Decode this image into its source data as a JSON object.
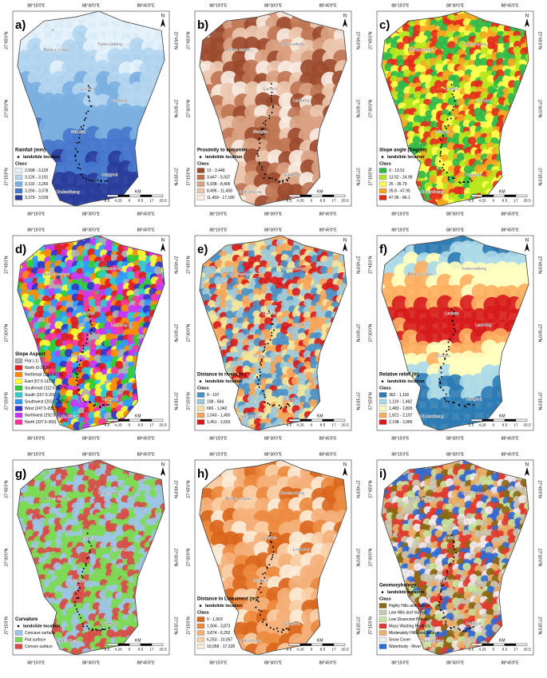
{
  "common": {
    "x_labels": [
      "88°15'0\"E",
      "88°30'0\"E",
      "88°45'0\"E"
    ],
    "y_labels": [
      "27°45'0\"N",
      "27°30'0\"N",
      "27°15'0\"N"
    ],
    "north": "N",
    "places": [
      "Dolma sampa",
      "Yumesodong",
      "Lachen",
      "Lachung",
      "Mangan",
      "Gangtok",
      "Chulanthang"
    ],
    "scale": {
      "unit": "KM",
      "labels": [
        "8.5",
        "4.25",
        "0",
        "8.5",
        "17",
        "25.5"
      ]
    }
  },
  "panels": [
    {
      "letter": "a)",
      "legend_title": "Rainfall (mm)",
      "landslide_label": "landslide location",
      "class_label": "Class",
      "classes": [
        {
          "label": "2,998 - 3,125",
          "color": "#e6f3fb"
        },
        {
          "label": "3,126 - 3,191",
          "color": "#b5d6f0"
        },
        {
          "label": "3,192 - 3,265",
          "color": "#7cb0e0"
        },
        {
          "label": "3,266 - 3,378",
          "color": "#4678cc"
        },
        {
          "label": "3,379 - 3,539",
          "color": "#2a3c9a"
        }
      ]
    },
    {
      "letter": "b)",
      "legend_title": "Proximity to epicenter",
      "landslide_label": "landslide location",
      "class_label": "Class",
      "classes": [
        {
          "label": "13 - 3,446",
          "color": "#9c4a2e"
        },
        {
          "label": "3,447 - 5,937",
          "color": "#bf7553"
        },
        {
          "label": "5,938 - 8,495",
          "color": "#d9a283"
        },
        {
          "label": "8,496 - 11,458",
          "color": "#ecc8b0"
        },
        {
          "label": "11,459 - 17,180",
          "color": "#f8ece3"
        }
      ]
    },
    {
      "letter": "c)",
      "legend_title": "Slope angle (Degree)",
      "landslide_label": "landslide location",
      "class_label": "Class",
      "classes": [
        {
          "label": "0 - 13.51",
          "color": "#2db84a"
        },
        {
          "label": "13.52 - 24.99",
          "color": "#b5e61d"
        },
        {
          "label": "25 - 35.79",
          "color": "#ffff4d"
        },
        {
          "label": "35.8 - 47.95",
          "color": "#f5a623"
        },
        {
          "label": "47.96 - 86.1",
          "color": "#e32a1c"
        }
      ]
    },
    {
      "letter": "d)",
      "legend_title": "Slope Aspect",
      "classes": [
        {
          "label": "Flat (-1)",
          "color": "#b0b0b0"
        },
        {
          "label": "North (0-22.5)",
          "color": "#e41a1c"
        },
        {
          "label": "Northeast (22.5-67.5)",
          "color": "#ff8c00"
        },
        {
          "label": "East (67.5-112.5)",
          "color": "#ffff33"
        },
        {
          "label": "Southeast (112.5-157.5)",
          "color": "#33cc33"
        },
        {
          "label": "South (157.5-202.5)",
          "color": "#33cccc"
        },
        {
          "label": "Southwest (202.5-247.5)",
          "color": "#3399ff"
        },
        {
          "label": "West (247.5-292.5)",
          "color": "#3333cc"
        },
        {
          "label": "Northwest (292.5-337.5)",
          "color": "#cc33ff"
        },
        {
          "label": "North (337.5-360)",
          "color": "#ff3399"
        }
      ]
    },
    {
      "letter": "e)",
      "legend_title": "Distance to rivers (m)",
      "landslide_label": "landslide location",
      "class_label": "Class",
      "classes": [
        {
          "label": "0 - 107",
          "color": "#4a90c8"
        },
        {
          "label": "108 - 664",
          "color": "#9fc9d8"
        },
        {
          "label": "665 - 1,042",
          "color": "#f2e39b"
        },
        {
          "label": "1,043 - 1,450",
          "color": "#f5a45a"
        },
        {
          "label": "1,451 - 2,603",
          "color": "#d7191c"
        }
      ]
    },
    {
      "letter": "f)",
      "legend_title": "Relative relief (m)",
      "landslide_label": "landslide location",
      "class_label": "Class",
      "classes": [
        {
          "label": "362 - 1,118",
          "color": "#2c7bb6"
        },
        {
          "label": "1,119 - 1,482",
          "color": "#abd9e9"
        },
        {
          "label": "1,483 - 1,820",
          "color": "#ffffbf"
        },
        {
          "label": "1,821 - 2,197",
          "color": "#fdae61"
        },
        {
          "label": "2,198 - 3,965",
          "color": "#d7191c"
        }
      ]
    },
    {
      "letter": "g)",
      "legend_title": "Curvature",
      "landslide_label": "landslide location",
      "classes": [
        {
          "label": "Concave surface",
          "color": "#9ec4e8"
        },
        {
          "label": "Flat surface",
          "color": "#7ed957"
        },
        {
          "label": "Convex surface",
          "color": "#d94a4a"
        }
      ]
    },
    {
      "letter": "h)",
      "legend_title": "Distance to Lineament (m)",
      "landslide_label": "landslide location",
      "class_label": "Class",
      "classes": [
        {
          "label": "0 - 1,903",
          "color": "#d9661c"
        },
        {
          "label": "1,904 - 3,873",
          "color": "#ec8a3e"
        },
        {
          "label": "3,874 - 6,252",
          "color": "#f5b07a"
        },
        {
          "label": "6,253 - 10,057",
          "color": "#f9d0a8"
        },
        {
          "label": "10,058 - 17,328",
          "color": "#fcecd8"
        }
      ]
    },
    {
      "letter": "i)",
      "legend_title": "Geomorphology",
      "landslide_label": "landslide location",
      "class_label": "Class",
      "classes": [
        {
          "label": "Highly Hills and Valleys",
          "color": "#8b6914"
        },
        {
          "label": "Low Hills and Valleys",
          "color": "#c9c9b0"
        },
        {
          "label": "Low Dissected Plateau",
          "color": "#c8e6a0"
        },
        {
          "label": "Mass Wasting Products",
          "color": "#e03c31"
        },
        {
          "label": "Moderately Hills and Valleys",
          "color": "#e8b26a"
        },
        {
          "label": "Snow Cover",
          "color": "#eeeef4"
        },
        {
          "label": "Waterbody - River",
          "color": "#2d6bd6"
        }
      ]
    }
  ]
}
